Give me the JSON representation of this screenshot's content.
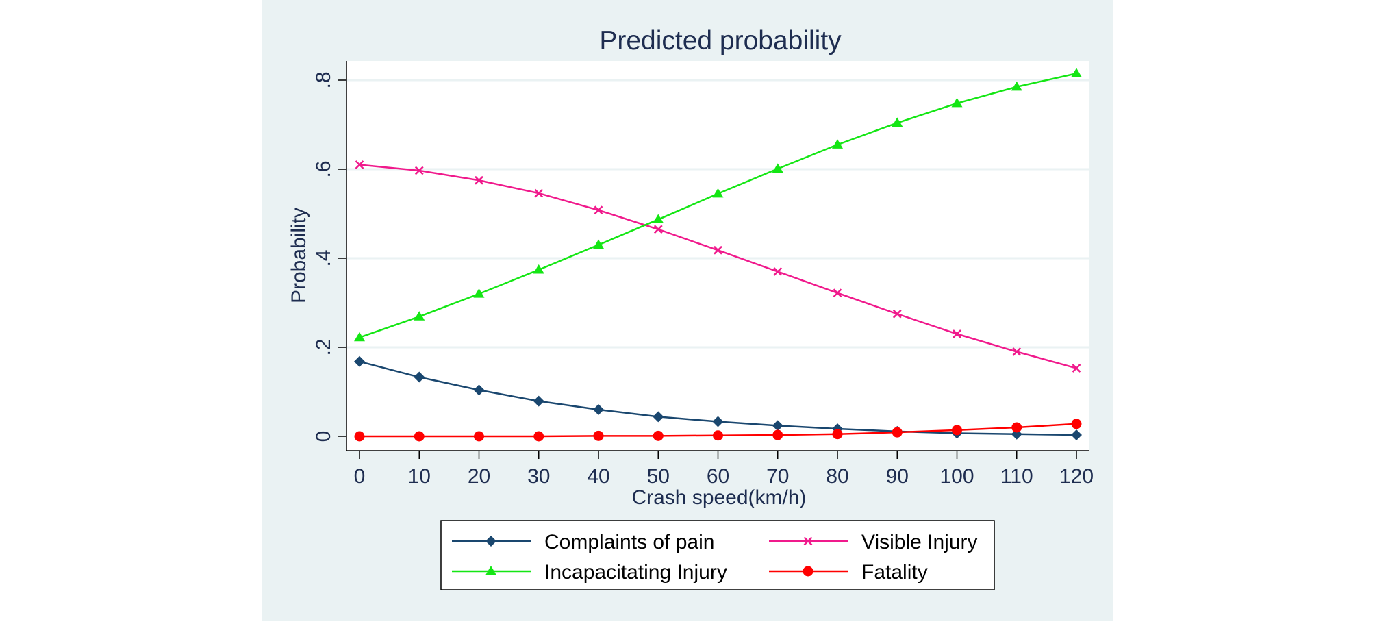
{
  "chart_data": {
    "type": "line",
    "title": "Predicted probability",
    "xlabel": "Crash speed(km/h)",
    "ylabel": "Probability",
    "x": [
      0,
      10,
      20,
      30,
      40,
      50,
      60,
      70,
      80,
      90,
      100,
      110,
      120
    ],
    "xlim": [
      0,
      120
    ],
    "ylim": [
      0,
      0.8
    ],
    "x_ticks": [
      0,
      10,
      20,
      30,
      40,
      50,
      60,
      70,
      80,
      90,
      100,
      110,
      120
    ],
    "x_tick_labels": [
      "0",
      "10",
      "20",
      "30",
      "40",
      "50",
      "60",
      "70",
      "80",
      "90",
      "100",
      "110",
      "120"
    ],
    "y_ticks": [
      0,
      0.2,
      0.4,
      0.6,
      0.8
    ],
    "y_tick_labels": [
      "0",
      ".2",
      ".4",
      ".6",
      ".8"
    ],
    "grid": true,
    "legend_position": "bottom",
    "series": [
      {
        "name": "Complaints of pain",
        "color": "#1a476f",
        "marker": "diamond",
        "values": [
          0.168,
          0.133,
          0.104,
          0.079,
          0.06,
          0.044,
          0.033,
          0.024,
          0.017,
          0.011,
          0.007,
          0.005,
          0.003
        ]
      },
      {
        "name": "Visible Injury",
        "color": "#f01a8c",
        "marker": "x",
        "values": [
          0.61,
          0.597,
          0.575,
          0.546,
          0.508,
          0.465,
          0.418,
          0.37,
          0.322,
          0.275,
          0.23,
          0.19,
          0.153
        ]
      },
      {
        "name": "Incapacitating Injury",
        "color": "#14e614",
        "marker": "triangle",
        "values": [
          0.222,
          0.269,
          0.32,
          0.374,
          0.43,
          0.487,
          0.545,
          0.601,
          0.655,
          0.704,
          0.748,
          0.785,
          0.815
        ]
      },
      {
        "name": "Fatality",
        "color": "#ff0000",
        "marker": "circle",
        "values": [
          0.0,
          0.0,
          0.0,
          0.0,
          0.001,
          0.001,
          0.002,
          0.003,
          0.005,
          0.009,
          0.014,
          0.02,
          0.028
        ]
      }
    ]
  },
  "colors": {
    "outer_background": "#eaf2f3",
    "plot_background": "#ffffff",
    "grid": "#eaf2f3",
    "text": "#1e2d50"
  }
}
